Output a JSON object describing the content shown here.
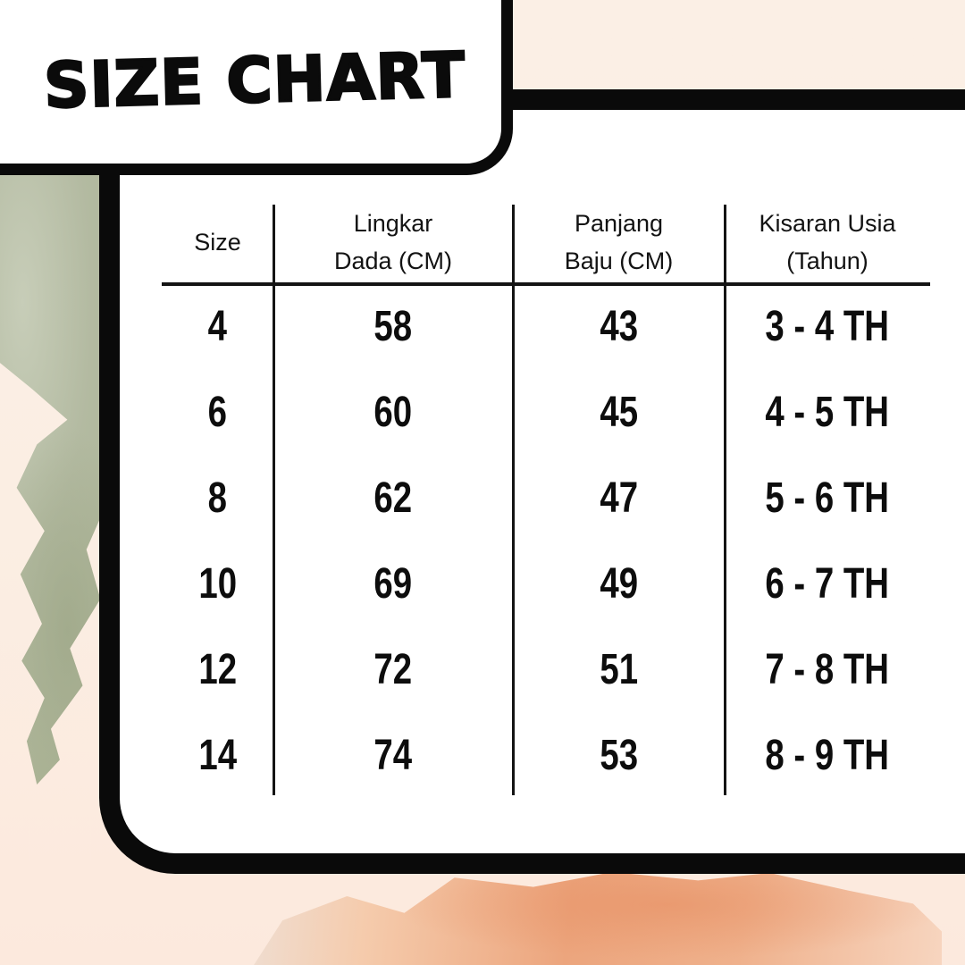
{
  "title": "SIZE CHART",
  "chart_data": {
    "type": "table",
    "title": "SIZE CHART",
    "columns": [
      "Size",
      "Lingkar Dada (CM)",
      "Panjang Baju (CM)",
      "Kisaran Usia (Tahun)"
    ],
    "rows": [
      [
        "4",
        "58",
        "43",
        "3 - 4 TH"
      ],
      [
        "6",
        "60",
        "45",
        "4 - 5 TH"
      ],
      [
        "8",
        "62",
        "47",
        "5 - 6 TH"
      ],
      [
        "10",
        "69",
        "49",
        "6 - 7 TH"
      ],
      [
        "12",
        "72",
        "51",
        "7 - 8 TH"
      ],
      [
        "14",
        "74",
        "53",
        "8 - 9 TH"
      ]
    ]
  },
  "table_headers": [
    {
      "line1": "Size",
      "line2": ""
    },
    {
      "line1": "Lingkar",
      "line2": "Dada (CM)"
    },
    {
      "line1": "Panjang",
      "line2": "Baju (CM)"
    },
    {
      "line1": "Kisaran Usia",
      "line2": "(Tahun)"
    }
  ],
  "colors": {
    "background_peach": "#fbeee3",
    "panel_white": "#ffffff",
    "line_black": "#0a0a0a",
    "sage_watercolor": "#b3baa1",
    "salmon_watercolor": "#eca57d"
  }
}
